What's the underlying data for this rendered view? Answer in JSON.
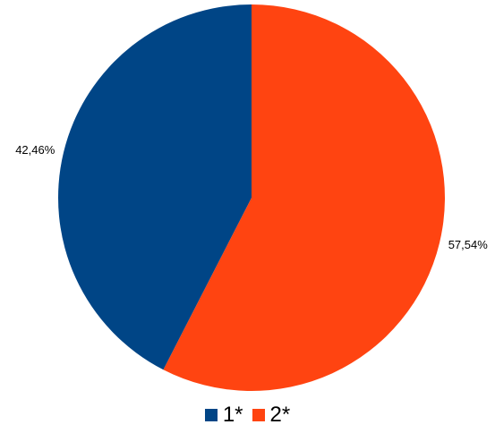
{
  "chart_data": {
    "type": "pie",
    "slices": [
      {
        "label": "2*",
        "value": 57.54,
        "value_label": "57,54%",
        "color": "#ff4411"
      },
      {
        "label": "1*",
        "value": 42.46,
        "value_label": "42,46%",
        "color": "#004586"
      }
    ],
    "legend": {
      "placement": "bottom",
      "items": [
        {
          "label": "1*",
          "color": "#004586"
        },
        {
          "label": "2*",
          "color": "#ff4411"
        }
      ]
    }
  }
}
